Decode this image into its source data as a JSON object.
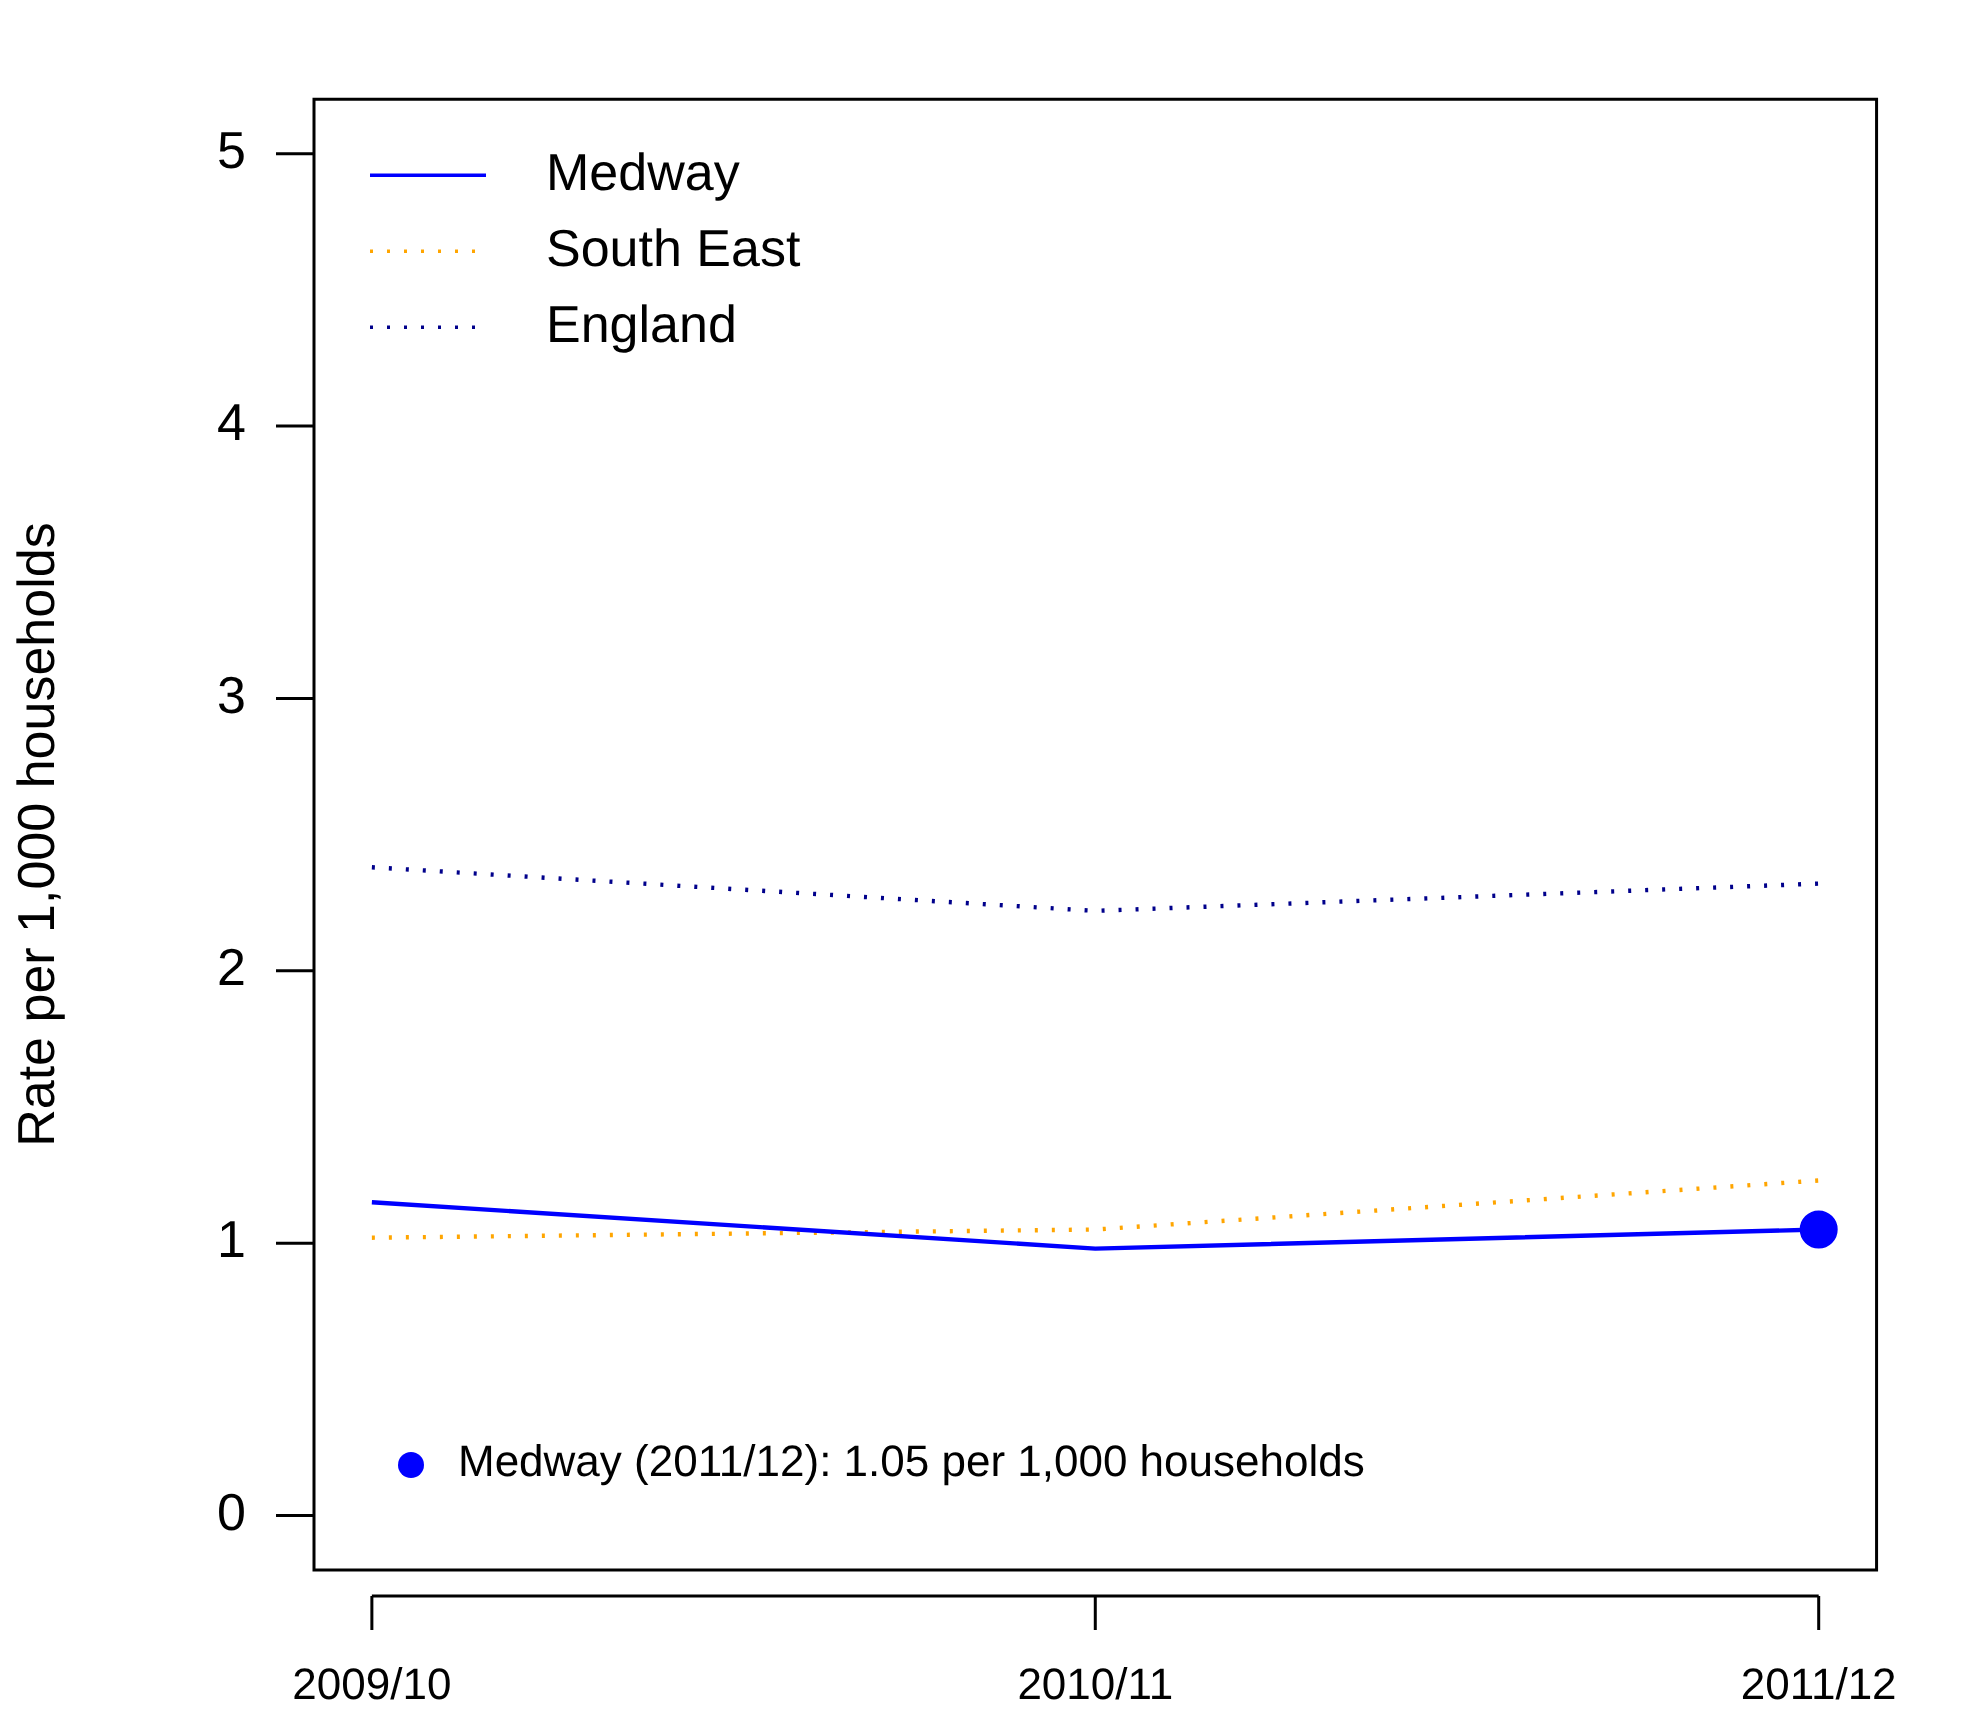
{
  "chart_data": {
    "type": "line",
    "ylabel": "Rate per 1,000 households",
    "categories": [
      "2009/10",
      "2010/11",
      "2011/12"
    ],
    "series": [
      {
        "name": "Medway",
        "color": "#0000ff",
        "values": [
          1.15,
          0.98,
          1.05
        ],
        "line_style": "solid"
      },
      {
        "name": "South East",
        "color": "#ffa500",
        "values": [
          1.02,
          1.05,
          1.23
        ],
        "line_style": "dotted"
      },
      {
        "name": "England",
        "color": "#00008b",
        "values": [
          2.38,
          2.22,
          2.32
        ],
        "line_style": "dotted"
      },
      {
        "type": "scatter",
        "color": "#0000ff",
        "x": [
          "2011/12"
        ],
        "values": [
          1.05
        ],
        "marker": "circle"
      }
    ],
    "ylim": [
      -0.2,
      5.2
    ],
    "yticks": [
      0,
      1,
      2,
      3,
      4,
      5
    ],
    "grid": false,
    "legend": "top left",
    "annotations": [
      "Medway (2011/12): 1.05 per 1,000 households"
    ]
  }
}
